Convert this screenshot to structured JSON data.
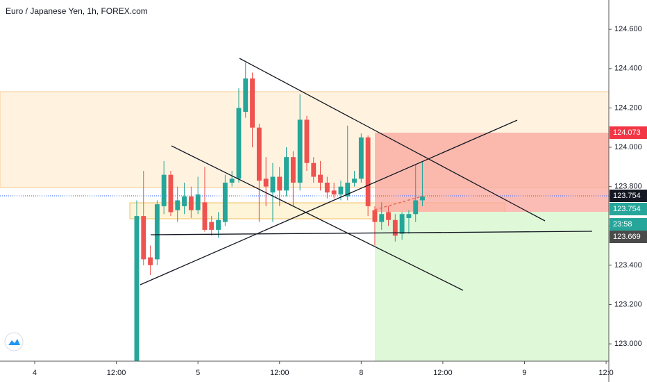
{
  "chart_data": {
    "type": "candlestick",
    "title": "Euro / Japanese Yen, 1h, FOREX.com",
    "x": [
      15,
      16,
      17,
      18,
      19,
      20,
      21,
      22,
      23,
      24,
      25,
      26,
      27,
      28,
      29,
      30,
      31,
      32,
      33,
      34,
      35,
      36,
      37,
      38,
      39,
      40,
      41,
      42,
      43,
      44,
      45,
      46,
      47,
      48,
      49,
      50,
      51,
      52,
      53,
      54,
      55,
      56,
      57
    ],
    "open": [
      122.91,
      123.65,
      123.44,
      123.43,
      123.7,
      123.86,
      123.68,
      123.7,
      123.75,
      123.68,
      123.72,
      123.62,
      123.58,
      123.62,
      123.82,
      123.84,
      124.18,
      124.35,
      124.1,
      123.84,
      123.77,
      123.85,
      123.78,
      123.95,
      123.82,
      124.14,
      123.92,
      123.86,
      123.82,
      123.78,
      123.76,
      123.75,
      123.82,
      123.84,
      124.05,
      123.68,
      123.62,
      123.67,
      123.63,
      123.56,
      123.64,
      123.66,
      123.73
    ],
    "high": [
      123.73,
      123.88,
      123.5,
      123.73,
      123.93,
      123.88,
      123.8,
      123.82,
      123.8,
      123.85,
      123.9,
      123.65,
      123.67,
      123.86,
      123.88,
      124.3,
      124.43,
      124.38,
      124.12,
      123.95,
      123.92,
      123.9,
      124.0,
      123.98,
      124.27,
      124.16,
      123.95,
      123.93,
      123.85,
      123.82,
      123.83,
      124.11,
      123.88,
      124.07,
      124.06,
      123.7,
      123.72,
      123.7,
      123.66,
      123.67,
      123.68,
      123.91,
      123.93
    ],
    "low": [
      122.91,
      123.4,
      123.35,
      123.4,
      123.66,
      123.65,
      123.62,
      123.66,
      123.64,
      123.66,
      123.57,
      123.55,
      123.54,
      123.6,
      123.8,
      123.82,
      124.15,
      124.0,
      123.62,
      123.7,
      123.62,
      123.7,
      123.75,
      123.7,
      123.78,
      123.88,
      123.82,
      123.78,
      123.74,
      123.74,
      123.73,
      123.73,
      123.8,
      123.82,
      123.65,
      123.5,
      123.58,
      123.6,
      123.52,
      123.53,
      123.56,
      123.62,
      123.7
    ],
    "close": [
      123.65,
      123.43,
      123.4,
      123.71,
      123.86,
      123.67,
      123.73,
      123.75,
      123.68,
      123.76,
      123.58,
      123.58,
      123.63,
      123.82,
      123.84,
      124.2,
      124.35,
      124.1,
      123.83,
      123.8,
      123.85,
      123.78,
      123.95,
      123.82,
      124.14,
      123.92,
      123.85,
      123.82,
      123.77,
      123.76,
      123.8,
      123.82,
      123.84,
      124.05,
      123.7,
      123.62,
      123.66,
      123.63,
      123.55,
      123.66,
      123.66,
      123.73,
      123.75
    ],
    "up_color": "#26a69a",
    "down_color": "#ef5350",
    "xlim": [
      -5.1,
      84.4
    ],
    "ylim": [
      122.912,
      124.749
    ],
    "xticks": [
      {
        "value": 0,
        "label": "4"
      },
      {
        "value": 12,
        "label": "12:00"
      },
      {
        "value": 24,
        "label": "5"
      },
      {
        "value": 36,
        "label": "12:00"
      },
      {
        "value": 48,
        "label": "8"
      },
      {
        "value": 60,
        "label": "12:00"
      },
      {
        "value": 72,
        "label": "9"
      },
      {
        "value": 84,
        "label": "12:0"
      }
    ],
    "yticks": [
      {
        "value": 123.0,
        "label": "123.000"
      },
      {
        "value": 123.2,
        "label": "123.200"
      },
      {
        "value": 123.4,
        "label": "123.400"
      },
      {
        "value": 123.6,
        "label": "123.600"
      },
      {
        "value": 123.8,
        "label": "123.800"
      },
      {
        "value": 124.0,
        "label": "124.000"
      },
      {
        "value": 124.2,
        "label": "124.200"
      },
      {
        "value": 124.4,
        "label": "124.400"
      },
      {
        "value": 124.6,
        "label": "124.600"
      }
    ],
    "price_labels": [
      {
        "label": "124.073",
        "color": "#f23645"
      },
      {
        "label": "123.754",
        "color": "#131722"
      },
      {
        "label": "123.754",
        "color": "#26a69a"
      },
      {
        "label": "23:58",
        "color": "#26a69a"
      },
      {
        "label": "123.669",
        "color": "#4a4a4a"
      }
    ]
  }
}
